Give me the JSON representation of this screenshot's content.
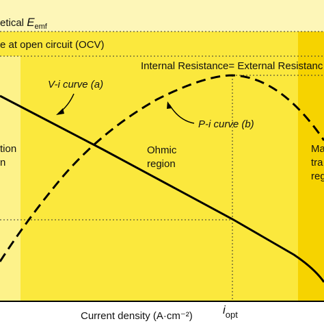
{
  "labels": {
    "emf_prefix": "etical ",
    "emf_symbol": "E",
    "emf_subscript": "emf",
    "ocv": "e at open circuit (OCV)",
    "resistance": "Internal Resistance= External Resistanc",
    "vi_curve": "V-i curve (a)",
    "pi_curve": "P-i curve (b)",
    "activation_line1": "tion",
    "activation_line2": "n",
    "ohmic_line1": "Ohmic",
    "ohmic_line2": "region",
    "mass_line1": "Ma",
    "mass_line2": "tra",
    "mass_line3": "reg",
    "x_axis": "Current density (A·cm⁻²)",
    "iopt_symbol": "i",
    "iopt_subscript": "opt"
  }
}
